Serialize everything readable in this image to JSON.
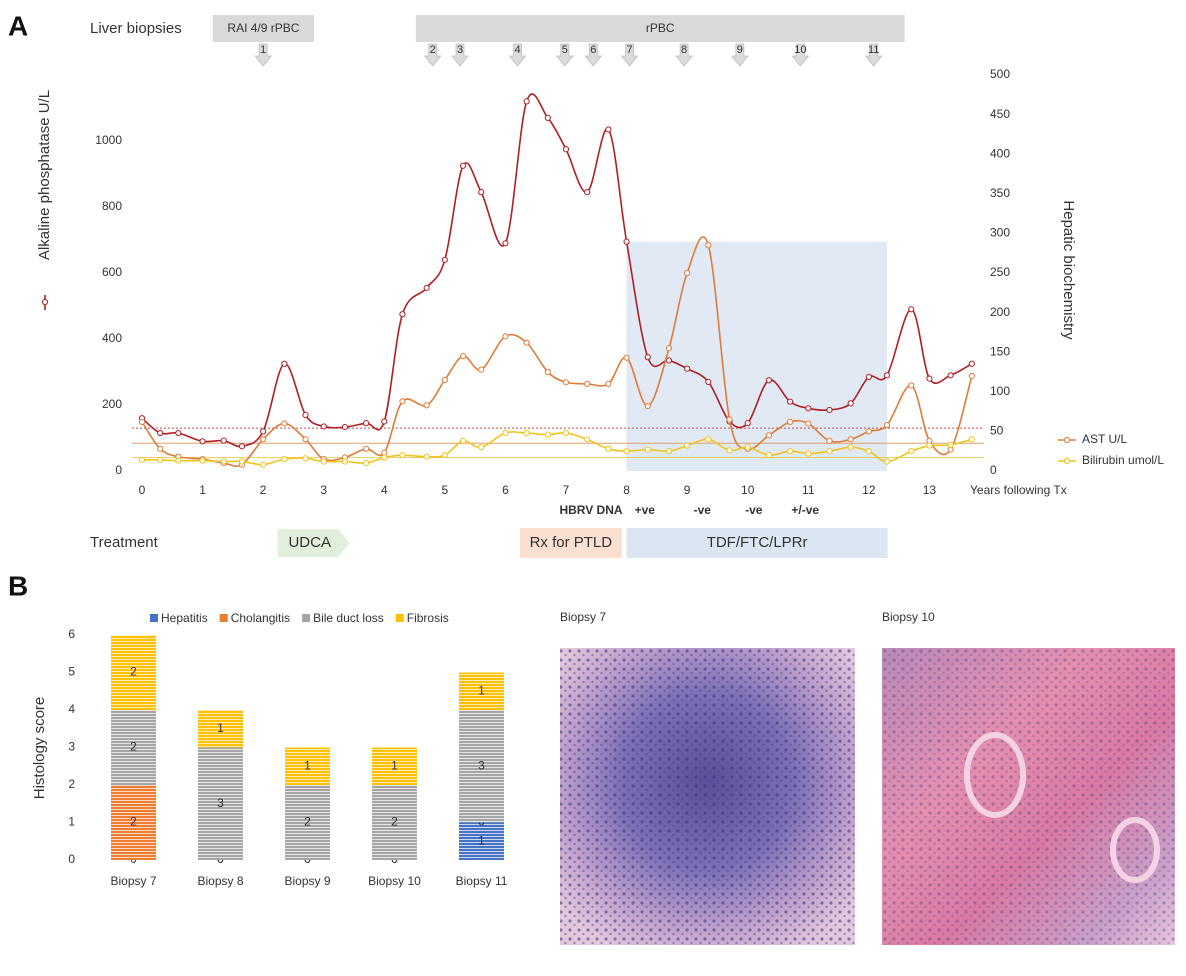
{
  "chart_data": [
    {
      "type": "line",
      "panel_label": "A",
      "xlabel": "Years following Tx",
      "ylabel2": "Hepatic biochemistry",
      "x": [
        0,
        0.3,
        0.6,
        1,
        1.35,
        1.65,
        2,
        2.35,
        2.7,
        3,
        3.35,
        3.7,
        4,
        4.3,
        4.7,
        5,
        5.3,
        5.6,
        6,
        6.35,
        6.7,
        7,
        7.35,
        7.7,
        8,
        8.35,
        8.7,
        9,
        9.35,
        9.7,
        10,
        10.35,
        10.7,
        11,
        11.35,
        11.7,
        12,
        12.3,
        12.7,
        13,
        13.35,
        13.7
      ],
      "xlim": [
        0,
        14
      ],
      "xticks": [
        0,
        1,
        2,
        3,
        4,
        5,
        6,
        7,
        8,
        9,
        10,
        11,
        12,
        13
      ],
      "ylim": [
        0,
        1200
      ],
      "yticks": [
        0,
        200,
        400,
        600,
        800,
        1000
      ],
      "y2lim": [
        0,
        500
      ],
      "y2ticks": [
        0,
        50,
        100,
        150,
        200,
        250,
        300,
        350,
        400,
        450,
        500
      ],
      "series": [
        {
          "name": "Alkaline phosphatase U/L",
          "color": "#b01e23",
          "axis": "y",
          "values": [
            160,
            115,
            115,
            90,
            92,
            75,
            120,
            325,
            170,
            135,
            133,
            145,
            150,
            475,
            555,
            640,
            925,
            845,
            690,
            1120,
            1070,
            975,
            845,
            1035,
            695,
            345,
            335,
            310,
            270,
            150,
            145,
            275,
            210,
            190,
            185,
            205,
            285,
            290,
            490,
            280,
            290,
            325
          ]
        },
        {
          "name": "AST U/L",
          "color": "#e07b39",
          "axis": "y2",
          "values": [
            62,
            28,
            18,
            15,
            10,
            8,
            40,
            60,
            40,
            15,
            17,
            28,
            23,
            88,
            83,
            115,
            145,
            128,
            170,
            162,
            125,
            112,
            110,
            110,
            143,
            82,
            155,
            250,
            285,
            65,
            28,
            45,
            62,
            60,
            38,
            40,
            50,
            58,
            108,
            38,
            27,
            120
          ]
        },
        {
          "name": "Bilirubin umol/L",
          "color": "#f0c419",
          "axis": "y2",
          "values": [
            14,
            14,
            13,
            13,
            12,
            12,
            8,
            15,
            16,
            12,
            12,
            10,
            17,
            20,
            18,
            20,
            38,
            30,
            48,
            48,
            46,
            48,
            40,
            28,
            25,
            27,
            25,
            32,
            40,
            26,
            30,
            20,
            25,
            22,
            25,
            30,
            25,
            12,
            25,
            32,
            33,
            40
          ]
        }
      ],
      "reference_lines": [
        {
          "axis": "y",
          "value": 130,
          "color": "#c0504d"
        },
        {
          "axis": "y2",
          "value": 35,
          "color": "#e0a070"
        },
        {
          "axis": "y2",
          "value": 17,
          "color": "#e8cf6a"
        }
      ],
      "shaded_region": {
        "x": [
          8,
          12.3
        ],
        "y": [
          0,
          695
        ],
        "color": "#dce6f2"
      },
      "liver_biopsies": {
        "label": "Liver biopsies",
        "bands": [
          {
            "label": "RAI 4/9 rPBC",
            "x": [
              1.17,
              2.84
            ]
          },
          {
            "label": "rPBC",
            "x": [
              4.52,
              12.59
            ]
          }
        ],
        "markers": [
          {
            "label": "1",
            "x": 2.0
          },
          {
            "label": "2",
            "x": 4.8
          },
          {
            "label": "3",
            "x": 5.25
          },
          {
            "label": "4",
            "x": 6.2
          },
          {
            "label": "5",
            "x": 6.98
          },
          {
            "label": "6",
            "x": 7.45
          },
          {
            "label": "7",
            "x": 8.05
          },
          {
            "label": "8",
            "x": 8.95
          },
          {
            "label": "9",
            "x": 9.87
          },
          {
            "label": "10",
            "x": 10.87
          },
          {
            "label": "11",
            "x": 12.08
          }
        ]
      },
      "hbrv_dna": {
        "label": "HBRV DNA",
        "results": [
          {
            "label": "+ve",
            "x": 8.3
          },
          {
            "label": "-ve",
            "x": 9.25
          },
          {
            "label": "-ve",
            "x": 10.1
          },
          {
            "label": "+/-ve",
            "x": 10.95
          }
        ]
      },
      "treatment": {
        "label": "Treatment",
        "bands": [
          {
            "label": "UDCA",
            "x": [
              2.24,
              3.43
            ],
            "color": "#e2efda",
            "shape": "arrow"
          },
          {
            "label": "Rx for PTLD",
            "x": [
              6.24,
              7.92
            ],
            "color": "#fbe0d2",
            "shape": "box"
          },
          {
            "label": "TDF/FTC/LPRr",
            "x": [
              8.0,
              12.31
            ],
            "color": "#dce6f2",
            "shape": "box"
          }
        ]
      }
    },
    {
      "type": "bar",
      "stacked": true,
      "panel_label": "B",
      "ylabel": "Histology score",
      "categories": [
        "Biopsy 7",
        "Biopsy 8",
        "Biopsy 9",
        "Biopsy 10",
        "Biopsy 11"
      ],
      "ylim": [
        0,
        6
      ],
      "yticks": [
        0,
        1,
        2,
        3,
        4,
        5,
        6
      ],
      "series": [
        {
          "name": "Hepatitis",
          "color": "#4472c4",
          "values": [
            0,
            0,
            0,
            0,
            1
          ]
        },
        {
          "name": "Cholangitis",
          "color": "#ed7d31",
          "values": [
            2,
            0,
            0,
            0,
            0
          ]
        },
        {
          "name": "Bile duct loss",
          "color": "#a5a5a5",
          "values": [
            2,
            3,
            2,
            2,
            3
          ]
        },
        {
          "name": "Fibrosis",
          "color": "#ffc000",
          "values": [
            2,
            1,
            1,
            1,
            1
          ]
        }
      ]
    }
  ],
  "images": [
    {
      "title": "Biopsy 7"
    },
    {
      "title": "Biopsy 10"
    }
  ]
}
